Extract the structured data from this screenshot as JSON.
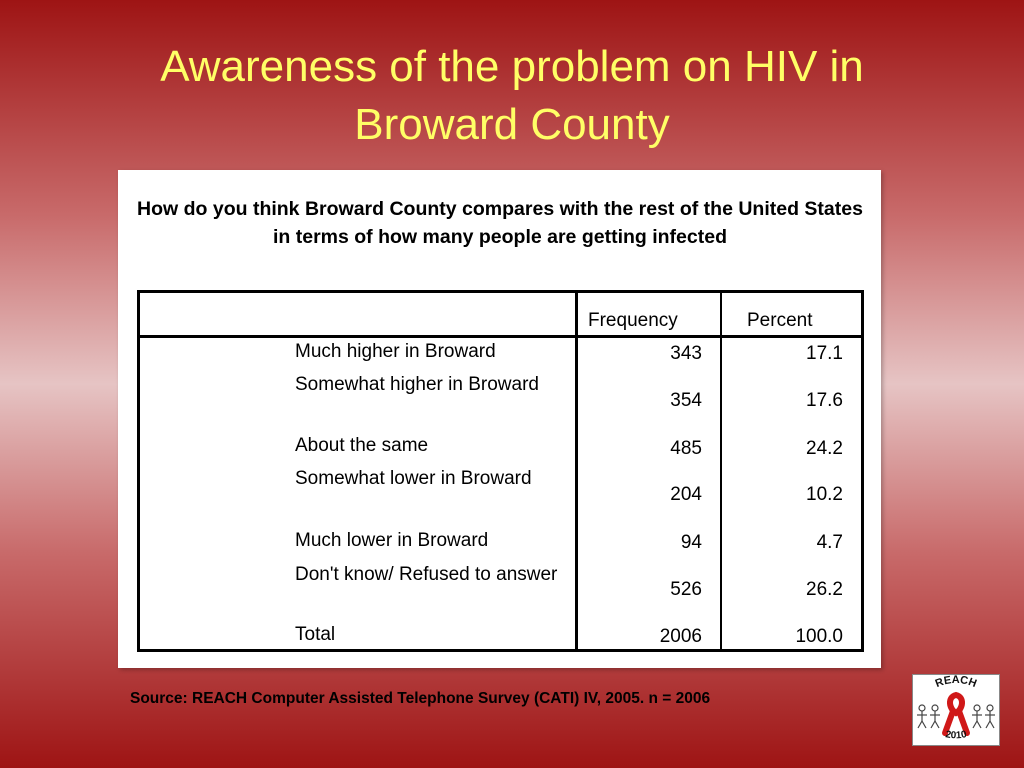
{
  "slide": {
    "title_line1": "Awareness of the problem on HIV in",
    "title_line2": "Broward County",
    "title_color": "#ffff66",
    "background_accent": "#9e1414"
  },
  "table": {
    "question": "How do you think Broward County compares with the rest of the United States in terms of how many people are getting infected",
    "headers": {
      "frequency": "Frequency",
      "percent": "Percent"
    },
    "rows": [
      {
        "label": "Much higher in Broward",
        "frequency": "343",
        "percent": "17.1"
      },
      {
        "label": "Somewhat higher in Broward",
        "frequency": "354",
        "percent": "17.6"
      },
      {
        "label": "About the same",
        "frequency": "485",
        "percent": "24.2"
      },
      {
        "label": "Somewhat lower in Broward",
        "frequency": "204",
        "percent": "10.2"
      },
      {
        "label": "Much lower in Broward",
        "frequency": "94",
        "percent": "4.7"
      },
      {
        "label": "Don't know/ Refused to answer",
        "frequency": "526",
        "percent": "26.2"
      },
      {
        "label": "Total",
        "frequency": "2006",
        "percent": "100.0"
      }
    ]
  },
  "footer": {
    "source": "Source: REACH Computer Assisted Telephone Survey (CATI) IV, 2005. n = 2006"
  },
  "logo": {
    "top_text": "REACH",
    "bottom_text": "2010",
    "icon": "red-ribbon-icon",
    "ribbon_color": "#d01818"
  }
}
